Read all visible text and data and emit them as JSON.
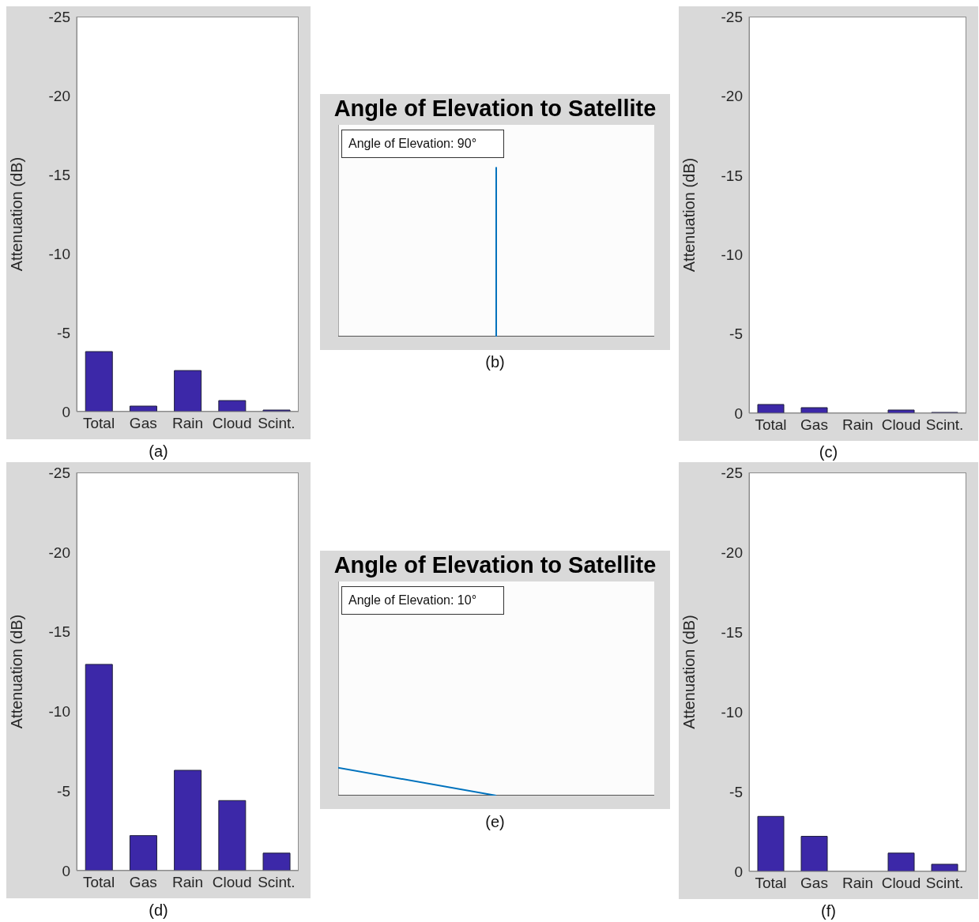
{
  "chart_data": [
    {
      "type": "bar",
      "categories": [
        "Total",
        "Gas",
        "Rain",
        "Cloud",
        "Scint."
      ],
      "values": [
        -3.8,
        -0.35,
        -2.6,
        -0.7,
        -0.1
      ],
      "color": "#3c28a8",
      "ylabel": "Attenuation (dB)",
      "ylim": [
        0,
        -25
      ],
      "yticks": [
        -25,
        -20,
        -15,
        -10,
        -5,
        0
      ],
      "annotations": [
        "(a)"
      ]
    },
    {
      "type": "other",
      "title": "Angle of Elevation to Satellite",
      "color": "#0072bd",
      "annotations": [
        "Angle of Elevation: 90°",
        "(b)"
      ]
    },
    {
      "type": "bar",
      "categories": [
        "Total",
        "Gas",
        "Rain",
        "Cloud",
        "Scint."
      ],
      "values": [
        -0.55,
        -0.35,
        0,
        -0.2,
        -0.05
      ],
      "color": "#3c28a8",
      "ylabel": "Attenuation (dB)",
      "ylim": [
        0,
        -25
      ],
      "yticks": [
        -25,
        -20,
        -15,
        -10,
        -5,
        0
      ],
      "annotations": [
        "(c)"
      ]
    },
    {
      "type": "bar",
      "categories": [
        "Total",
        "Gas",
        "Rain",
        "Cloud",
        "Scint."
      ],
      "values": [
        -12.95,
        -2.2,
        -6.3,
        -4.4,
        -1.1
      ],
      "color": "#3c28a8",
      "ylabel": "Attenuation (dB)",
      "ylim": [
        0,
        -25
      ],
      "yticks": [
        -25,
        -20,
        -15,
        -10,
        -5,
        0
      ],
      "annotations": [
        "(d)"
      ]
    },
    {
      "type": "other",
      "title": "Angle of Elevation to Satellite",
      "color": "#0072bd",
      "annotations": [
        "Angle of Elevation: 10°",
        "(e)"
      ]
    },
    {
      "type": "bar",
      "categories": [
        "Total",
        "Gas",
        "Rain",
        "Cloud",
        "Scint."
      ],
      "values": [
        -3.45,
        -2.2,
        0,
        -1.15,
        -0.45
      ],
      "color": "#3c28a8",
      "ylabel": "Attenuation (dB)",
      "ylim": [
        0,
        -25
      ],
      "yticks": [
        -25,
        -20,
        -15,
        -10,
        -5,
        0
      ],
      "annotations": [
        "(f)"
      ]
    }
  ]
}
